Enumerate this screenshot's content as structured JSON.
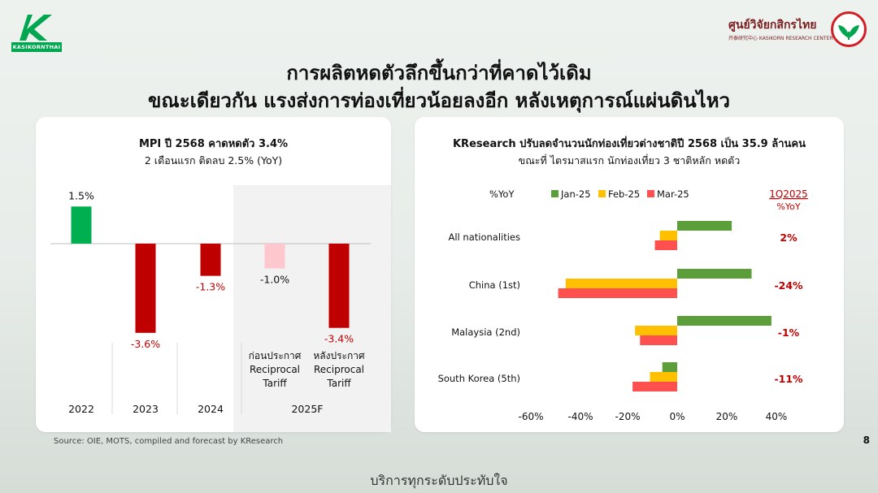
{
  "logos": {
    "left_brand": "KASIKORNTHAI",
    "right_name": "ศูนย์วิจัยกสิกรไทย",
    "right_sub": "开泰研究中心 KASIKORN RESEARCH CENTER"
  },
  "title": {
    "line1": "การผลิตหดตัวลึกขึ้นกว่าที่คาดไว้เดิม",
    "line2": "ขณะเดียวกัน แรงส่งการท่องเที่ยวน้อยลงอีก หลังเหตุการณ์แผ่นดินไหว"
  },
  "left_panel": {
    "title": "MPI ปี 2568 คาดหดตัว 3.4%",
    "subtitle": "2 เดือนแรก ติดลบ 2.5% (YoY)"
  },
  "right_panel": {
    "title": "KResearch ปรับลดจำนวนนักท่องเที่ยวต่างชาติปี 2568 เป็น 35.9 ล้านคน",
    "subtitle": "ขณะที่ ไตรมาสแรก นักท่องเที่ยว 3 ชาติหลัก หดตัว"
  },
  "colors": {
    "green": "#00b050",
    "dark_red": "#c00000",
    "light_red": "#ffc7ce",
    "jan": "#5b9e3a",
    "feb": "#ffc000",
    "mar": "#ff5050"
  },
  "chart_data": [
    {
      "type": "bar",
      "title": "MPI ปี 2568 คาดหดตัว 3.4%",
      "subtitle": "2 เดือนแรก ติดลบ 2.5% (YoY)",
      "bars": [
        {
          "label": "1.5%",
          "value": 1.5,
          "color": "#00b050",
          "label_color": "#111111"
        },
        {
          "label": "-3.6%",
          "value": -3.6,
          "color": "#c00000",
          "label_color": "#c00000"
        },
        {
          "label": "-1.3%",
          "value": -1.3,
          "color": "#c00000",
          "label_color": "#c00000"
        },
        {
          "label": "-1.0%",
          "value": -1.0,
          "color": "#ffc7ce",
          "label_color": "#111111"
        },
        {
          "label": "-3.4%",
          "value": -3.4,
          "color": "#c00000",
          "label_color": "#c00000"
        }
      ],
      "sublabels": [
        "",
        "",
        "",
        "ก่อนประกาศ\nReciprocal\nTariff",
        "หลังประกาศ\nReciprocal\nTariff"
      ],
      "groups": [
        "2022",
        "2023",
        "2024",
        "2025F"
      ],
      "ylim": [
        -4.5,
        2.0
      ]
    },
    {
      "type": "bar",
      "orientation": "horizontal",
      "title": "KResearch ปรับลดจำนวนนักท่องเที่ยวต่างชาติปี 2568 เป็น 35.9 ล้านคน",
      "subtitle": "ขณะที่ ไตรมาสแรก นักท่องเที่ยว 3 ชาติหลัก หดตัว",
      "unit_label": "%YoY",
      "categories": [
        "All nationalities",
        "China (1st)",
        "Malaysia (2nd)",
        "South Korea (5th)"
      ],
      "series": [
        {
          "name": "Jan-25",
          "color": "#5b9e3a",
          "values": [
            22,
            30,
            38,
            -6
          ]
        },
        {
          "name": "Feb-25",
          "color": "#ffc000",
          "values": [
            -7,
            -45,
            -17,
            -11
          ]
        },
        {
          "name": "Mar-25",
          "color": "#ff5050",
          "values": [
            -9,
            -48,
            -15,
            -18
          ]
        }
      ],
      "q1_header": "1Q2025",
      "q1_unit": "%YoY",
      "q1_values": [
        "2%",
        "-24%",
        "-1%",
        "-11%"
      ],
      "x_ticks": [
        "-60%",
        "-40%",
        "-20%",
        "0%",
        "20%",
        "40%"
      ],
      "xlim": [
        -60,
        40
      ]
    }
  ],
  "source": "Source: OIE, MOTS, compiled and forecast by KResearch",
  "page_number": "8",
  "footer": "บริการทุกระดับประทับใจ"
}
